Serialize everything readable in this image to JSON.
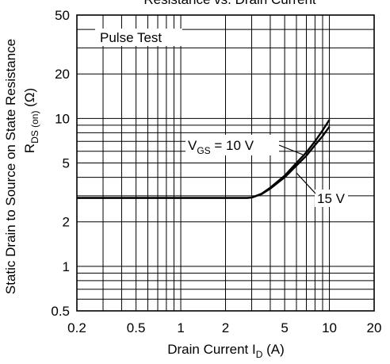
{
  "chart_data": {
    "type": "line",
    "title": "Resistance vs. Drain Current",
    "xlabel": {
      "main": "Drain Current  I",
      "sub": "D",
      "unit": "  (A)"
    },
    "ylabel": {
      "line1": "Static Drain to Source on State Resistance",
      "main": "R",
      "sub": "DS (on)",
      "unit": "  (Ω)"
    },
    "x_scale": "log",
    "y_scale": "log",
    "xlim": [
      0.2,
      20
    ],
    "ylim": [
      0.5,
      50
    ],
    "x_ticks": [
      {
        "v": 0.2,
        "label": "0.2"
      },
      {
        "v": 0.5,
        "label": "0.5"
      },
      {
        "v": 1,
        "label": "1"
      },
      {
        "v": 2,
        "label": "2"
      },
      {
        "v": 5,
        "label": "5"
      },
      {
        "v": 10,
        "label": "10"
      },
      {
        "v": 20,
        "label": "20"
      }
    ],
    "y_ticks": [
      {
        "v": 0.5,
        "label": "0.5"
      },
      {
        "v": 1,
        "label": "1"
      },
      {
        "v": 2,
        "label": "2"
      },
      {
        "v": 5,
        "label": "5"
      },
      {
        "v": 10,
        "label": "10"
      },
      {
        "v": 20,
        "label": "20"
      },
      {
        "v": 50,
        "label": "50"
      }
    ],
    "x_grid": [
      0.3,
      0.4,
      0.5,
      0.6,
      0.7,
      0.8,
      0.9,
      1,
      2,
      3,
      4,
      5,
      6,
      7,
      8,
      9,
      10
    ],
    "y_grid": [
      0.6,
      0.7,
      0.8,
      0.9,
      1,
      2,
      3,
      4,
      5,
      6,
      7,
      8,
      9,
      10,
      20,
      30,
      40
    ],
    "grid": true,
    "annotations": {
      "box": "Pulse Test",
      "vgs10": {
        "pre": "V",
        "sub": "GS",
        "post": " = 10 V"
      },
      "vgs15": "15 V"
    },
    "series": [
      {
        "name": "10 V",
        "x": [
          0.2,
          2.8,
          3.0,
          3.5,
          4.0,
          5.0,
          6.0,
          7.0,
          8.0,
          9.0,
          10.0
        ],
        "y": [
          2.9,
          2.9,
          2.92,
          3.1,
          3.4,
          4.1,
          5.0,
          5.9,
          7.0,
          8.3,
          9.8
        ]
      },
      {
        "name": "15 V",
        "x": [
          0.2,
          2.8,
          3.0,
          3.5,
          4.0,
          5.0,
          6.0,
          7.0,
          8.0,
          9.0,
          10.0
        ],
        "y": [
          2.9,
          2.9,
          2.92,
          3.08,
          3.35,
          4.0,
          4.8,
          5.6,
          6.6,
          7.6,
          8.8
        ]
      }
    ]
  }
}
